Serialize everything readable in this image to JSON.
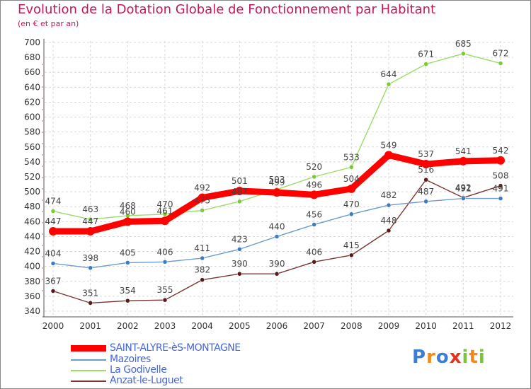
{
  "title": "Evolution de la Dotation Globale de Fonctionnement par Habitant",
  "subtitle": "(en € et par an)",
  "logo": {
    "text": "Proxiti"
  },
  "chart_data": {
    "type": "line",
    "x": [
      2000,
      2001,
      2002,
      2003,
      2004,
      2005,
      2006,
      2007,
      2008,
      2009,
      2010,
      2011,
      2012
    ],
    "ylim": [
      340,
      700
    ],
    "yticks": [
      340,
      360,
      380,
      400,
      420,
      440,
      460,
      480,
      500,
      520,
      540,
      560,
      580,
      600,
      620,
      640,
      660,
      680,
      700
    ],
    "grid": true,
    "legend_position": "bottom-left",
    "series": [
      {
        "name": "SAINT-ALYRE-èS-MONTAGNE",
        "color": "#ff0000",
        "marker": "#ff0000",
        "values": [
          447,
          447,
          460,
          461,
          492,
          501,
          499,
          496,
          504,
          549,
          537,
          541,
          542
        ]
      },
      {
        "name": "Mazoires",
        "color": "#6a9cce",
        "marker": "#3d7cc0",
        "values": [
          404,
          398,
          405,
          406,
          411,
          423,
          440,
          456,
          470,
          482,
          487,
          491,
          491
        ]
      },
      {
        "name": "La Godivelle",
        "color": "#99dd66",
        "marker": "#77cc33",
        "values": [
          474,
          463,
          468,
          470,
          475,
          487,
          503,
          520,
          533,
          644,
          671,
          685,
          672
        ]
      },
      {
        "name": "Anzat-le-Luguet",
        "color": "#7a3535",
        "marker": "#5a1a1a",
        "values": [
          367,
          351,
          354,
          355,
          382,
          390,
          390,
          406,
          415,
          448,
          516,
          492,
          508
        ]
      }
    ]
  }
}
